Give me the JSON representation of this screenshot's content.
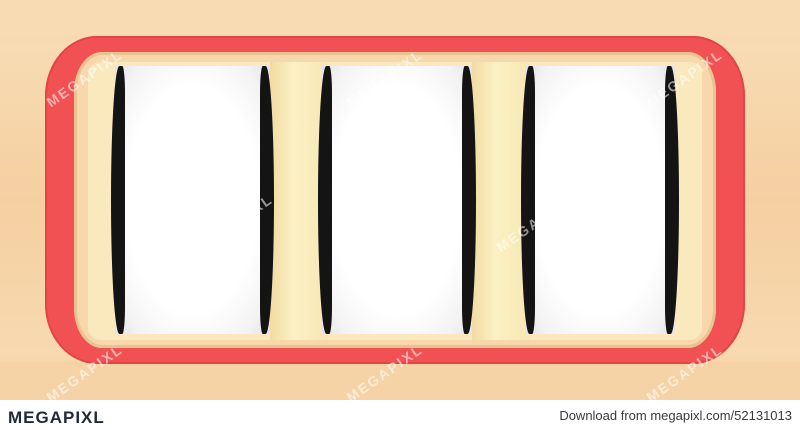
{
  "footer": {
    "logo_text": "MEGAPIXL",
    "credit_text": "Download from megapixl.com/52131013"
  },
  "watermark_text": "MEGAPIXL",
  "colors": {
    "background": "#f6d4a8",
    "frame_red": "#f15152",
    "reel_white": "#ffffff",
    "reel_rim": "#141414",
    "divider_cream": "#f9e9bd"
  }
}
